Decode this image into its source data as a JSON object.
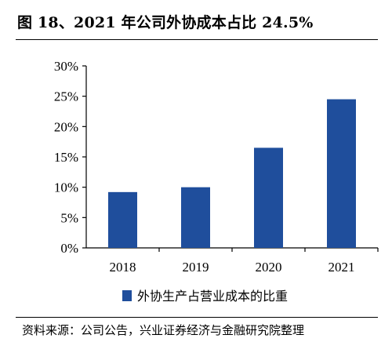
{
  "title": "图 18、2021 年公司外协成本占比 24.5%",
  "source": "资料来源：公司公告，兴业证券经济与金融研究院整理",
  "colors": {
    "bar": "#1f4e9c",
    "axis": "#000000"
  },
  "chart_data": {
    "type": "bar",
    "categories": [
      "2018",
      "2019",
      "2020",
      "2021"
    ],
    "series": [
      {
        "name": "外协生产占营业成本的比重",
        "values": [
          9.2,
          10.0,
          16.5,
          24.5
        ]
      }
    ],
    "yticks": [
      "0%",
      "5%",
      "10%",
      "15%",
      "20%",
      "25%",
      "30%"
    ],
    "ylim": [
      0,
      30
    ],
    "ylabel_unit": "%",
    "grid": false,
    "legend_position": "bottom"
  }
}
